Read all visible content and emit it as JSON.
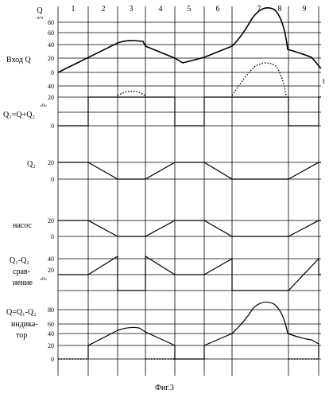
{
  "axis": {
    "q_label": "Q",
    "unit": "л/ч",
    "t_label": "t",
    "segments": [
      "1",
      "2",
      "3",
      "4",
      "5",
      "6",
      "7",
      "8",
      "9"
    ]
  },
  "rows": {
    "input": {
      "label": "Вход Q",
      "ticks": [
        "80",
        "60",
        "40",
        "20",
        "0"
      ]
    },
    "q1": {
      "label_lines": [
        "Q₁=Q+Q₂"
      ],
      "ticks": [
        "40",
        "20",
        "0"
      ],
      "zero_mark": "«0»"
    },
    "q2": {
      "label_lines": [
        "Q₂"
      ],
      "ticks": [
        "20",
        "0"
      ]
    },
    "pump": {
      "label_lines": [
        "насос"
      ],
      "ticks": [
        "20",
        "0"
      ]
    },
    "comparison": {
      "label_lines": [
        "Q₁-Q₂",
        "срав-",
        "нение"
      ],
      "ticks": [
        "40",
        "20"
      ],
      "zero_mark": "«0»"
    },
    "indicator": {
      "label_lines": [
        "Q=Q₁-Q₂",
        "индика-",
        "тор"
      ],
      "ticks": [
        "80",
        "60",
        "40",
        "20",
        "0"
      ]
    }
  },
  "caption": "Фиг.3"
}
